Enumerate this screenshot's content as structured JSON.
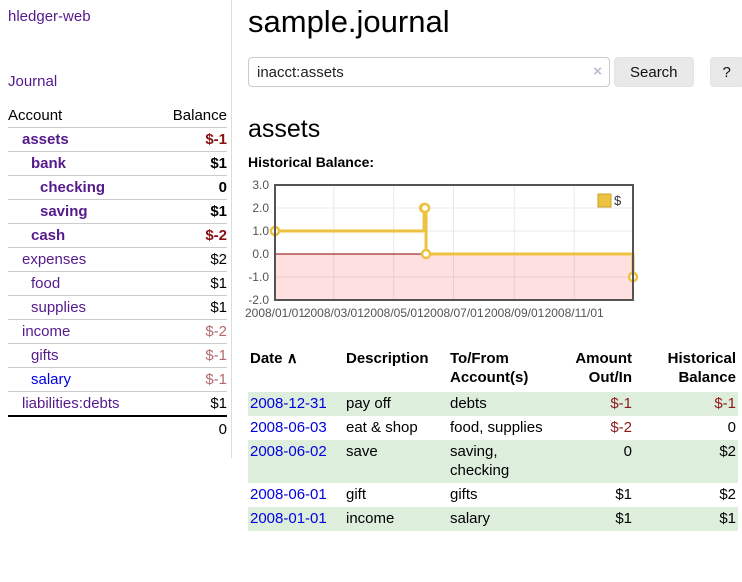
{
  "sidebar": {
    "brand": "hledger-web",
    "journal_link": "Journal",
    "accounts_table": {
      "headers": {
        "account": "Account",
        "balance": "Balance"
      },
      "rows": [
        {
          "name": "assets",
          "balance": "$-1",
          "depth": 1,
          "bold": true,
          "neg": "strong"
        },
        {
          "name": "bank",
          "balance": "$1",
          "depth": 2,
          "bold": true
        },
        {
          "name": "checking",
          "balance": "0",
          "depth": 3,
          "bold": true
        },
        {
          "name": "saving",
          "balance": "$1",
          "depth": 3,
          "bold": true
        },
        {
          "name": "cash",
          "balance": "$-2",
          "depth": 2,
          "bold": true,
          "neg": "strong"
        },
        {
          "name": "expenses",
          "balance": "$2",
          "depth": 1
        },
        {
          "name": "food",
          "balance": "$1",
          "depth": 2
        },
        {
          "name": "supplies",
          "balance": "$1",
          "depth": 2
        },
        {
          "name": "income",
          "balance": "$-2",
          "depth": 1,
          "neg": "light"
        },
        {
          "name": "gifts",
          "balance": "$-1",
          "depth": 2,
          "neg": "light"
        },
        {
          "name": "salary",
          "balance": "$-1",
          "depth": 2,
          "neg": "light",
          "link": "blue"
        },
        {
          "name": "liabilities:debts",
          "balance": "$1",
          "depth": 1
        }
      ],
      "total": "0"
    }
  },
  "header": {
    "title": "sample.journal"
  },
  "search": {
    "value": "inacct:assets",
    "clear_icon": "×",
    "button_label": "Search",
    "help_label": "?"
  },
  "account_page": {
    "title": "assets",
    "chart_label": "Historical Balance:"
  },
  "chart_data": {
    "type": "line",
    "step": true,
    "series": [
      {
        "name": "$",
        "points_ref": "points"
      }
    ],
    "points": [
      {
        "date": "2008-01-01",
        "x": 0,
        "y": 1
      },
      {
        "date": "2008-06-01",
        "x": 152,
        "y": 2
      },
      {
        "date": "2008-06-02",
        "x": 153,
        "y": 2
      },
      {
        "date": "2008-06-03",
        "x": 154,
        "y": 0
      },
      {
        "date": "2008-12-31",
        "x": 365,
        "y": -1
      }
    ],
    "x_range": [
      0,
      365
    ],
    "ylim": [
      -2,
      3
    ],
    "x_ticks": [
      {
        "x": 0,
        "label": "2008/01/01"
      },
      {
        "x": 60,
        "label": "2008/03/01"
      },
      {
        "x": 121,
        "label": "2008/05/01"
      },
      {
        "x": 182,
        "label": "2008/07/01"
      },
      {
        "x": 244,
        "label": "2008/09/01"
      },
      {
        "x": 305,
        "label": "2008/11/01"
      }
    ],
    "y_ticks": [
      {
        "value": 3,
        "label": "3.0"
      },
      {
        "value": 2,
        "label": "2.0"
      },
      {
        "value": 1,
        "label": "1.0"
      },
      {
        "value": 0,
        "label": "0.0"
      },
      {
        "value": -1,
        "label": "-1.0"
      },
      {
        "value": -2,
        "label": "-2.0"
      }
    ],
    "grid": true,
    "grid_color": "#e8e8e8",
    "series_color": "#edc240",
    "legend": {
      "label": "$",
      "position": "top-right",
      "swatch_border": "#c9a227"
    },
    "negative_region_fill": "rgba(255,0,0,0.12)",
    "zero_line_color": "#8b0000",
    "border_color": "#545454"
  },
  "register": {
    "sort_icon": "∧",
    "headers": {
      "date": "Date",
      "description": "Description",
      "accounts": "To/From Account(s)",
      "amount": "Amount Out/In",
      "balance": "Historical Balance"
    },
    "rows": [
      {
        "date": "2008-12-31",
        "description": "pay off",
        "accounts": "debts",
        "amount": "$-1",
        "balance": "$-1",
        "amount_neg": true,
        "balance_neg": true,
        "shade": true
      },
      {
        "date": "2008-06-03",
        "description": "eat & shop",
        "accounts": "food, supplies",
        "amount": "$-2",
        "balance": "0",
        "amount_neg": true,
        "balance_neg": false,
        "shade": false
      },
      {
        "date": "2008-06-02",
        "description": "save",
        "accounts": "saving, checking",
        "amount": "0",
        "balance": "$2",
        "amount_neg": false,
        "balance_neg": false,
        "shade": true
      },
      {
        "date": "2008-06-01",
        "description": "gift",
        "accounts": "gifts",
        "amount": "$1",
        "balance": "$2",
        "amount_neg": false,
        "balance_neg": false,
        "shade": false
      },
      {
        "date": "2008-01-01",
        "description": "income",
        "accounts": "salary",
        "amount": "$1",
        "balance": "$1",
        "amount_neg": false,
        "balance_neg": false,
        "shade": true
      }
    ]
  }
}
